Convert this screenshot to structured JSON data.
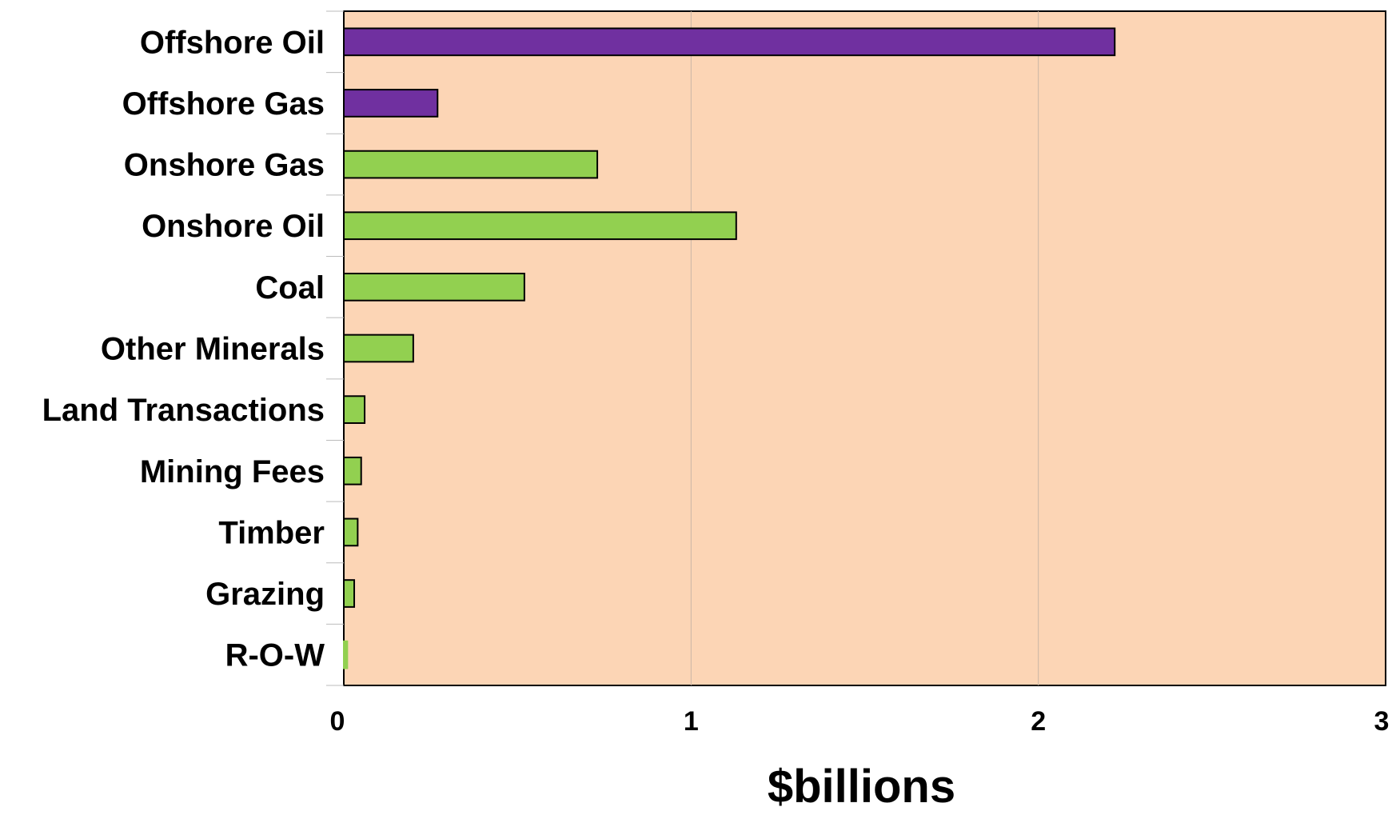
{
  "chart_data": {
    "type": "bar",
    "orientation": "horizontal",
    "title": "",
    "xlabel": "$billions",
    "ylabel": "",
    "xlim": [
      0,
      3
    ],
    "xticks": [
      "0",
      "1",
      "2",
      "3"
    ],
    "grid": true,
    "legend": "none",
    "categories": [
      "Offshore Oil",
      "Offshore Gas",
      "Onshore Gas",
      "Onshore Oil",
      "Coal",
      "Other Minerals",
      "Land Transactions",
      "Mining Fees",
      "Timber",
      "Grazing",
      "R-O-W"
    ],
    "values": [
      2.22,
      0.27,
      0.73,
      1.13,
      0.52,
      0.2,
      0.06,
      0.05,
      0.04,
      0.03,
      0.01
    ],
    "bar_colors": [
      "#7030a0",
      "#7030a0",
      "#92d050",
      "#92d050",
      "#92d050",
      "#92d050",
      "#92d050",
      "#92d050",
      "#92d050",
      "#92d050",
      "#92d050"
    ],
    "colors": {
      "plot_background": "#fcd5b5",
      "offshore": "#7030a0",
      "onshore": "#92d050",
      "gridline": "#c9b6a6"
    }
  }
}
